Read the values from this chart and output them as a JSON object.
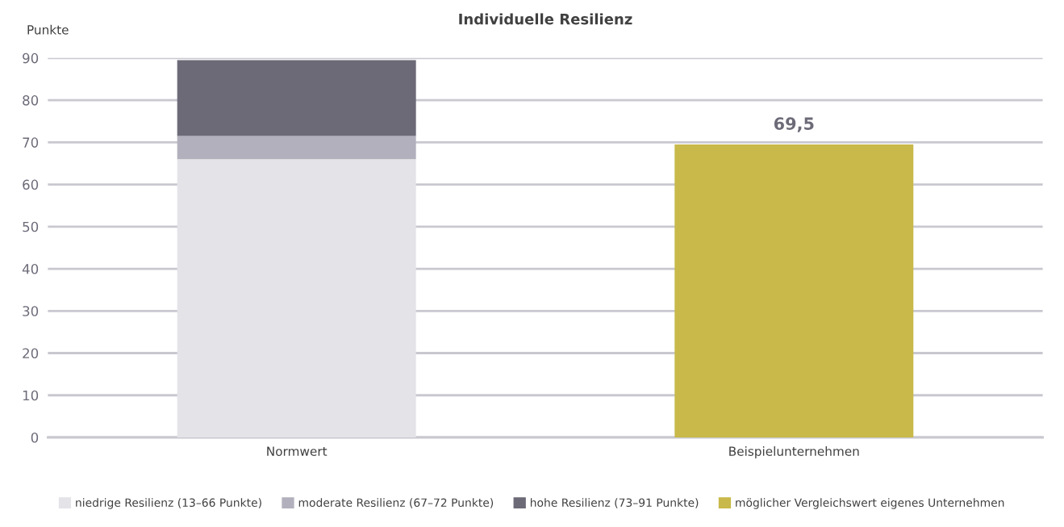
{
  "chart_data": {
    "type": "bar",
    "title": "Individuelle Resilienz",
    "ylabel": "Punkte",
    "categories": [
      "Normwert",
      "Beispielunternehmen"
    ],
    "stacked": true,
    "series": [
      {
        "name": "niedrige Resilienz (13–66 Punkte)",
        "color": "#e4e3e8",
        "values": [
          66,
          null
        ]
      },
      {
        "name": "moderate Resilienz (67–72 Punkte)",
        "color": "#b2b0bc",
        "values": [
          5.5,
          null
        ]
      },
      {
        "name": "hohe Resilienz (73–91 Punkte)",
        "color": "#6d6a78",
        "values": [
          18,
          null
        ]
      },
      {
        "name": "möglicher Vergleichswert eigenes Unternehmen",
        "color": "#c8b94a",
        "values": [
          null,
          69.5
        ],
        "value_labels": [
          null,
          "69,5"
        ]
      }
    ],
    "ylim": [
      0,
      90
    ],
    "yticks": [
      0,
      10,
      20,
      30,
      40,
      50,
      60,
      70,
      80,
      90
    ],
    "grid": "y",
    "legend": "bottom"
  }
}
